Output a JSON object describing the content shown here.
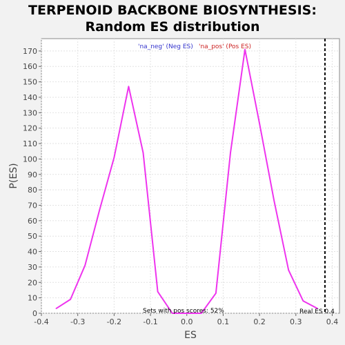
{
  "title_line1": "TERPENOID BACKBONE BIOSYNTHESIS:",
  "title_line2": "Random ES distribution",
  "chart_data": {
    "type": "line",
    "xlabel": "ES",
    "ylabel": "P(ES)",
    "xlim": [
      -0.4,
      0.42
    ],
    "ylim": [
      0,
      178
    ],
    "xticks": [
      "-0.4",
      "-0.3",
      "-0.2",
      "-0.1",
      "0.0",
      "0.1",
      "0.2",
      "0.3",
      "0.4"
    ],
    "yticks": [
      "0",
      "10",
      "20",
      "30",
      "40",
      "50",
      "60",
      "70",
      "80",
      "90",
      "100",
      "110",
      "120",
      "130",
      "140",
      "150",
      "160",
      "170"
    ],
    "grid": true,
    "series": [
      {
        "color": "#ee33ee",
        "x": [
          -0.36,
          -0.32,
          -0.28,
          -0.24,
          -0.2,
          -0.16,
          -0.12,
          -0.08,
          -0.04,
          0.0,
          0.04,
          0.08,
          0.12,
          0.16,
          0.2,
          0.24,
          0.28,
          0.32,
          0.36
        ],
        "y": [
          3,
          9,
          31,
          67,
          101,
          147,
          104,
          14,
          0,
          0,
          0,
          13,
          104,
          171,
          123,
          73,
          28,
          8,
          3
        ]
      }
    ],
    "real_es": 0.38,
    "legend": {
      "neg_text": "'na_neg' (Neg ES)",
      "pos_text": "'na_pos' (Pos ES)",
      "neg_color": "#3333cc",
      "pos_color": "#cc2222"
    },
    "annotation_pos_scores": "Sets with pos scores: 52%",
    "annotation_real_es": "Real ES 0.4"
  }
}
